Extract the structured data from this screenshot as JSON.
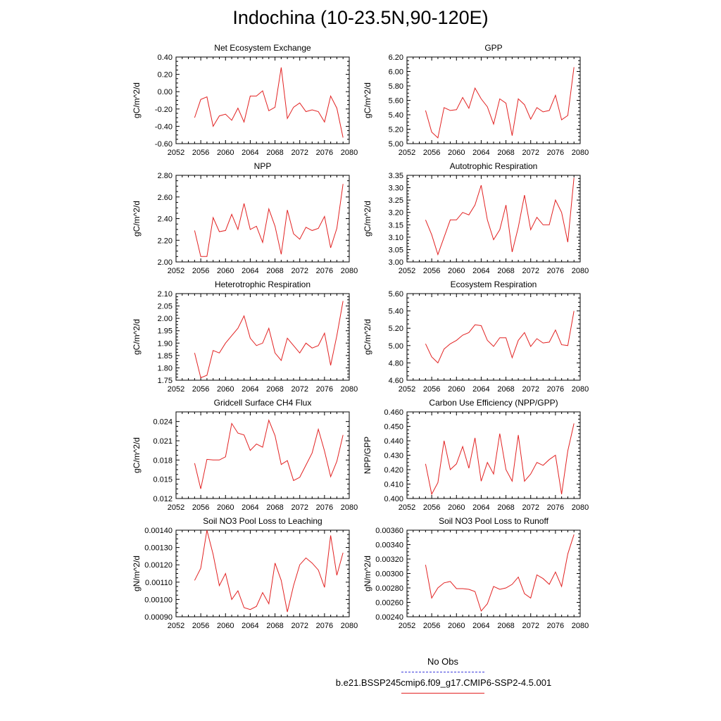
{
  "title": "Indochina (10-23.5N,90-120E)",
  "legend": {
    "obs_label": "No Obs",
    "obs_color": "#3b3bdc",
    "model_label": "b.e21.BSSP245cmip6.f09_g17.CMIP6-SSP2-4.5.001",
    "model_color": "#e22222"
  },
  "chart_data": [
    {
      "type": "line",
      "title": "Net Ecosystem Exchange",
      "ylabel": "gC/m^2/d",
      "xlim": [
        2052,
        2080
      ],
      "ylim": [
        -0.6,
        0.4
      ],
      "xticks": [
        "2052",
        "2056",
        "2060",
        "2064",
        "2068",
        "2072",
        "2076",
        "2080"
      ],
      "yticks": [
        "-0.60",
        "-0.40",
        "-0.20",
        "0.00",
        "0.20",
        "0.40"
      ],
      "x": [
        2055,
        2056,
        2057,
        2058,
        2059,
        2060,
        2061,
        2062,
        2063,
        2064,
        2065,
        2066,
        2067,
        2068,
        2069,
        2070,
        2071,
        2072,
        2073,
        2074,
        2075,
        2076,
        2077,
        2078,
        2079
      ],
      "series": [
        {
          "values": [
            -0.3,
            -0.09,
            -0.06,
            -0.4,
            -0.28,
            -0.26,
            -0.33,
            -0.19,
            -0.35,
            -0.05,
            -0.05,
            0.01,
            -0.22,
            -0.18,
            0.28,
            -0.31,
            -0.18,
            -0.13,
            -0.23,
            -0.21,
            -0.23,
            -0.35,
            -0.05,
            -0.19,
            -0.53
          ]
        }
      ]
    },
    {
      "type": "line",
      "title": "GPP",
      "ylabel": "gC/m^2/d",
      "xlim": [
        2052,
        2080
      ],
      "ylim": [
        5.0,
        6.2
      ],
      "xticks": [
        "2052",
        "2056",
        "2060",
        "2064",
        "2068",
        "2072",
        "2076",
        "2080"
      ],
      "yticks": [
        "5.00",
        "5.20",
        "5.40",
        "5.60",
        "5.80",
        "6.00",
        "6.20"
      ],
      "x": [
        2055,
        2056,
        2057,
        2058,
        2059,
        2060,
        2061,
        2062,
        2063,
        2064,
        2065,
        2066,
        2067,
        2068,
        2069,
        2070,
        2071,
        2072,
        2073,
        2074,
        2075,
        2076,
        2077,
        2078,
        2079
      ],
      "series": [
        {
          "values": [
            5.46,
            5.16,
            5.08,
            5.5,
            5.46,
            5.47,
            5.64,
            5.49,
            5.77,
            5.62,
            5.51,
            5.27,
            5.62,
            5.56,
            5.11,
            5.62,
            5.54,
            5.34,
            5.5,
            5.44,
            5.46,
            5.67,
            5.33,
            5.39,
            6.06
          ]
        }
      ]
    },
    {
      "type": "line",
      "title": "NPP",
      "ylabel": "gC/m^2/d",
      "xlim": [
        2052,
        2080
      ],
      "ylim": [
        2.0,
        2.8
      ],
      "xticks": [
        "2052",
        "2056",
        "2060",
        "2064",
        "2068",
        "2072",
        "2076",
        "2080"
      ],
      "yticks": [
        "2.00",
        "2.20",
        "2.40",
        "2.60",
        "2.80"
      ],
      "x": [
        2055,
        2056,
        2057,
        2058,
        2059,
        2060,
        2061,
        2062,
        2063,
        2064,
        2065,
        2066,
        2067,
        2068,
        2069,
        2070,
        2071,
        2072,
        2073,
        2074,
        2075,
        2076,
        2077,
        2078,
        2079
      ],
      "series": [
        {
          "values": [
            2.29,
            2.05,
            2.05,
            2.41,
            2.28,
            2.29,
            2.44,
            2.3,
            2.54,
            2.3,
            2.33,
            2.18,
            2.49,
            2.33,
            2.07,
            2.48,
            2.26,
            2.21,
            2.32,
            2.29,
            2.31,
            2.42,
            2.13,
            2.31,
            2.72
          ]
        }
      ]
    },
    {
      "type": "line",
      "title": "Autotrophic Respiration",
      "ylabel": "gC/m^2/d",
      "xlim": [
        2052,
        2080
      ],
      "ylim": [
        3.0,
        3.35
      ],
      "xticks": [
        "2052",
        "2056",
        "2060",
        "2064",
        "2068",
        "2072",
        "2076",
        "2080"
      ],
      "yticks": [
        "3.00",
        "3.05",
        "3.10",
        "3.15",
        "3.20",
        "3.25",
        "3.30",
        "3.35"
      ],
      "x": [
        2055,
        2056,
        2057,
        2058,
        2059,
        2060,
        2061,
        2062,
        2063,
        2064,
        2065,
        2066,
        2067,
        2068,
        2069,
        2070,
        2071,
        2072,
        2073,
        2074,
        2075,
        2076,
        2077,
        2078,
        2079
      ],
      "series": [
        {
          "values": [
            3.17,
            3.11,
            3.03,
            3.1,
            3.17,
            3.17,
            3.2,
            3.19,
            3.23,
            3.31,
            3.17,
            3.09,
            3.13,
            3.23,
            3.04,
            3.14,
            3.27,
            3.13,
            3.18,
            3.15,
            3.15,
            3.25,
            3.2,
            3.08,
            3.34
          ]
        }
      ]
    },
    {
      "type": "line",
      "title": "Heterotrophic Respiration",
      "ylabel": "gC/m^2/d",
      "xlim": [
        2052,
        2080
      ],
      "ylim": [
        1.75,
        2.1
      ],
      "xticks": [
        "2052",
        "2056",
        "2060",
        "2064",
        "2068",
        "2072",
        "2076",
        "2080"
      ],
      "yticks": [
        "1.75",
        "1.80",
        "1.85",
        "1.90",
        "1.95",
        "2.00",
        "2.05",
        "2.10"
      ],
      "x": [
        2055,
        2056,
        2057,
        2058,
        2059,
        2060,
        2061,
        2062,
        2063,
        2064,
        2065,
        2066,
        2067,
        2068,
        2069,
        2070,
        2071,
        2072,
        2073,
        2074,
        2075,
        2076,
        2077,
        2078,
        2079
      ],
      "series": [
        {
          "values": [
            1.86,
            1.76,
            1.77,
            1.87,
            1.86,
            1.9,
            1.93,
            1.96,
            2.01,
            1.92,
            1.89,
            1.9,
            1.96,
            1.86,
            1.83,
            1.92,
            1.89,
            1.86,
            1.9,
            1.88,
            1.89,
            1.94,
            1.81,
            1.93,
            2.07
          ]
        }
      ]
    },
    {
      "type": "line",
      "title": "Ecosystem Respiration",
      "ylabel": "gC/m^2/d",
      "xlim": [
        2052,
        2080
      ],
      "ylim": [
        4.6,
        5.6
      ],
      "xticks": [
        "2052",
        "2056",
        "2060",
        "2064",
        "2068",
        "2072",
        "2076",
        "2080"
      ],
      "yticks": [
        "4.60",
        "4.80",
        "5.00",
        "5.20",
        "5.40",
        "5.60"
      ],
      "x": [
        2055,
        2056,
        2057,
        2058,
        2059,
        2060,
        2061,
        2062,
        2063,
        2064,
        2065,
        2066,
        2067,
        2068,
        2069,
        2070,
        2071,
        2072,
        2073,
        2074,
        2075,
        2076,
        2077,
        2078,
        2079
      ],
      "series": [
        {
          "values": [
            5.02,
            4.87,
            4.8,
            4.96,
            5.02,
            5.06,
            5.12,
            5.15,
            5.24,
            5.23,
            5.06,
            4.99,
            5.09,
            5.09,
            4.86,
            5.06,
            5.15,
            4.99,
            5.08,
            5.03,
            5.04,
            5.18,
            5.01,
            5.0,
            5.4
          ]
        }
      ]
    },
    {
      "type": "line",
      "title": "Gridcell Surface CH4 Flux",
      "ylabel": "gC/m^2/d",
      "xlim": [
        2052,
        2080
      ],
      "ylim": [
        0.012,
        0.0255
      ],
      "xticks": [
        "2052",
        "2056",
        "2060",
        "2064",
        "2068",
        "2072",
        "2076",
        "2080"
      ],
      "yticks": [
        "0.012",
        "0.015",
        "0.018",
        "0.021",
        "0.024"
      ],
      "ytick_values": [
        0.012,
        0.015,
        0.018,
        0.021,
        0.024
      ],
      "x": [
        2055,
        2056,
        2057,
        2058,
        2059,
        2060,
        2061,
        2062,
        2063,
        2064,
        2065,
        2066,
        2067,
        2068,
        2069,
        2070,
        2071,
        2072,
        2073,
        2074,
        2075,
        2076,
        2077,
        2078,
        2079
      ],
      "series": [
        {
          "values": [
            0.0175,
            0.0135,
            0.0181,
            0.018,
            0.018,
            0.0185,
            0.0237,
            0.0222,
            0.0219,
            0.0195,
            0.0205,
            0.02,
            0.0242,
            0.0218,
            0.0173,
            0.0179,
            0.0148,
            0.0153,
            0.0172,
            0.0191,
            0.0228,
            0.0194,
            0.0154,
            0.0178,
            0.0219
          ]
        }
      ]
    },
    {
      "type": "line",
      "title": "Carbon Use Efficiency (NPP/GPP)",
      "ylabel": "NPP/GPP",
      "xlim": [
        2052,
        2080
      ],
      "ylim": [
        0.4,
        0.46
      ],
      "xticks": [
        "2052",
        "2056",
        "2060",
        "2064",
        "2068",
        "2072",
        "2076",
        "2080"
      ],
      "yticks": [
        "0.400",
        "0.410",
        "0.420",
        "0.430",
        "0.440",
        "0.450",
        "0.460"
      ],
      "x": [
        2055,
        2056,
        2057,
        2058,
        2059,
        2060,
        2061,
        2062,
        2063,
        2064,
        2065,
        2066,
        2067,
        2068,
        2069,
        2070,
        2071,
        2072,
        2073,
        2074,
        2075,
        2076,
        2077,
        2078,
        2079
      ],
      "series": [
        {
          "values": [
            0.424,
            0.403,
            0.411,
            0.44,
            0.42,
            0.424,
            0.436,
            0.421,
            0.442,
            0.412,
            0.425,
            0.417,
            0.445,
            0.42,
            0.412,
            0.444,
            0.412,
            0.417,
            0.425,
            0.423,
            0.427,
            0.43,
            0.403,
            0.433,
            0.452
          ]
        }
      ]
    },
    {
      "type": "line",
      "title": "Soil NO3 Pool Loss to Leaching",
      "ylabel": "gN/m^2/d",
      "xlim": [
        2052,
        2080
      ],
      "ylim": [
        0.0009,
        0.0014
      ],
      "xticks": [
        "2052",
        "2056",
        "2060",
        "2064",
        "2068",
        "2072",
        "2076",
        "2080"
      ],
      "yticks": [
        "0.00090",
        "0.00100",
        "0.00110",
        "0.00120",
        "0.00130",
        "0.00140"
      ],
      "x": [
        2055,
        2056,
        2057,
        2058,
        2059,
        2060,
        2061,
        2062,
        2063,
        2064,
        2065,
        2066,
        2067,
        2068,
        2069,
        2070,
        2071,
        2072,
        2073,
        2074,
        2075,
        2076,
        2077,
        2078,
        2079
      ],
      "series": [
        {
          "values": [
            0.00111,
            0.00118,
            0.0014,
            0.00126,
            0.00108,
            0.00115,
            0.001,
            0.00105,
            0.000953,
            0.000942,
            0.00096,
            0.00104,
            0.000975,
            0.00121,
            0.00111,
            0.000928,
            0.00108,
            0.0012,
            0.00124,
            0.00121,
            0.00117,
            0.00107,
            0.00137,
            0.00114,
            0.00127
          ]
        }
      ]
    },
    {
      "type": "line",
      "title": "Soil NO3 Pool Loss to Runoff",
      "ylabel": "gN/m^2/d",
      "xlim": [
        2052,
        2080
      ],
      "ylim": [
        0.0024,
        0.0036
      ],
      "xticks": [
        "2052",
        "2056",
        "2060",
        "2064",
        "2068",
        "2072",
        "2076",
        "2080"
      ],
      "yticks": [
        "0.00240",
        "0.00260",
        "0.00280",
        "0.00300",
        "0.00320",
        "0.00340",
        "0.00360"
      ],
      "x": [
        2055,
        2056,
        2057,
        2058,
        2059,
        2060,
        2061,
        2062,
        2063,
        2064,
        2065,
        2066,
        2067,
        2068,
        2069,
        2070,
        2071,
        2072,
        2073,
        2074,
        2075,
        2076,
        2077,
        2078,
        2079
      ],
      "series": [
        {
          "values": [
            0.00312,
            0.00266,
            0.0028,
            0.00287,
            0.00289,
            0.00279,
            0.00279,
            0.00278,
            0.00275,
            0.00248,
            0.00258,
            0.00282,
            0.00278,
            0.0028,
            0.00285,
            0.00295,
            0.00272,
            0.00266,
            0.00298,
            0.00293,
            0.00285,
            0.00302,
            0.00282,
            0.00327,
            0.00354
          ]
        }
      ]
    }
  ]
}
